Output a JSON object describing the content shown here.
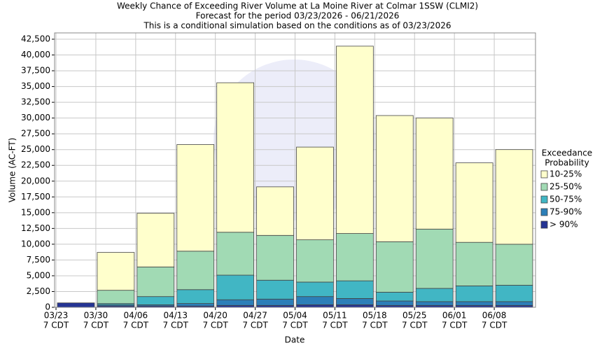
{
  "chart_data": {
    "type": "stacked_bar",
    "title": [
      "Weekly Chance of Exceeding River Volume at La Moine River at Colmar 1SSW (CLMI2)",
      "Forecast for the period 03/23/2026 - 06/21/2026",
      "This is a conditional simulation based on the conditions as of 03/23/2026"
    ],
    "x_label": "Date",
    "y_label": "Volume (AC-FT)",
    "categories": [
      "03/23",
      "03/30",
      "04/06",
      "04/13",
      "04/20",
      "04/27",
      "05/04",
      "05/11",
      "05/18",
      "05/25",
      "06/01",
      "06/08"
    ],
    "category_sublabel": "7 CDT",
    "legend_title": [
      "Exceedance",
      "Probability"
    ],
    "series": [
      {
        "name": "> 90%",
        "color": "#253494",
        "values": [
          700,
          200,
          200,
          200,
          300,
          300,
          400,
          400,
          300,
          300,
          300,
          300
        ]
      },
      {
        "name": "75-90%",
        "color": "#2c7fb8",
        "values": [
          0,
          200,
          200,
          400,
          900,
          1000,
          1300,
          1000,
          700,
          600,
          600,
          600
        ]
      },
      {
        "name": "50-75%",
        "color": "#41b6c4",
        "values": [
          0,
          200,
          1300,
          2200,
          3900,
          3000,
          2300,
          2800,
          1400,
          2100,
          2500,
          2600
        ]
      },
      {
        "name": "25-50%",
        "color": "#a1dab4",
        "values": [
          0,
          2100,
          4700,
          6100,
          6800,
          7100,
          6700,
          7500,
          8000,
          9400,
          6900,
          6500
        ]
      },
      {
        "name": "10-25%",
        "color": "#ffffcc",
        "values": [
          0,
          6000,
          8500,
          16900,
          23700,
          7700,
          14700,
          29700,
          20000,
          17600,
          12600,
          15000
        ]
      }
    ],
    "ylim": [
      0,
      43500
    ],
    "yticks": [
      0,
      {
        "value": 2500,
        "label": "2,500"
      },
      {
        "value": 5000,
        "label": "5,000"
      },
      {
        "value": 7500,
        "label": "7,500"
      },
      {
        "value": 10000,
        "label": "10,000"
      },
      {
        "value": 12500,
        "label": "12,500"
      },
      {
        "value": 15000,
        "label": "15,000"
      },
      {
        "value": 17500,
        "label": "17,500"
      },
      {
        "value": 20000,
        "label": "20,000"
      },
      {
        "value": 22500,
        "label": "22,500"
      },
      {
        "value": 25000,
        "label": "25,000"
      },
      {
        "value": 27500,
        "label": "27,500"
      },
      {
        "value": 30000,
        "label": "30,000"
      },
      {
        "value": 32500,
        "label": "32,500"
      },
      {
        "value": 35000,
        "label": "35,000"
      },
      {
        "value": 37500,
        "label": "37,500"
      },
      {
        "value": 40000,
        "label": "40,000"
      },
      {
        "value": 42500,
        "label": "42,500"
      }
    ],
    "grid": true
  }
}
